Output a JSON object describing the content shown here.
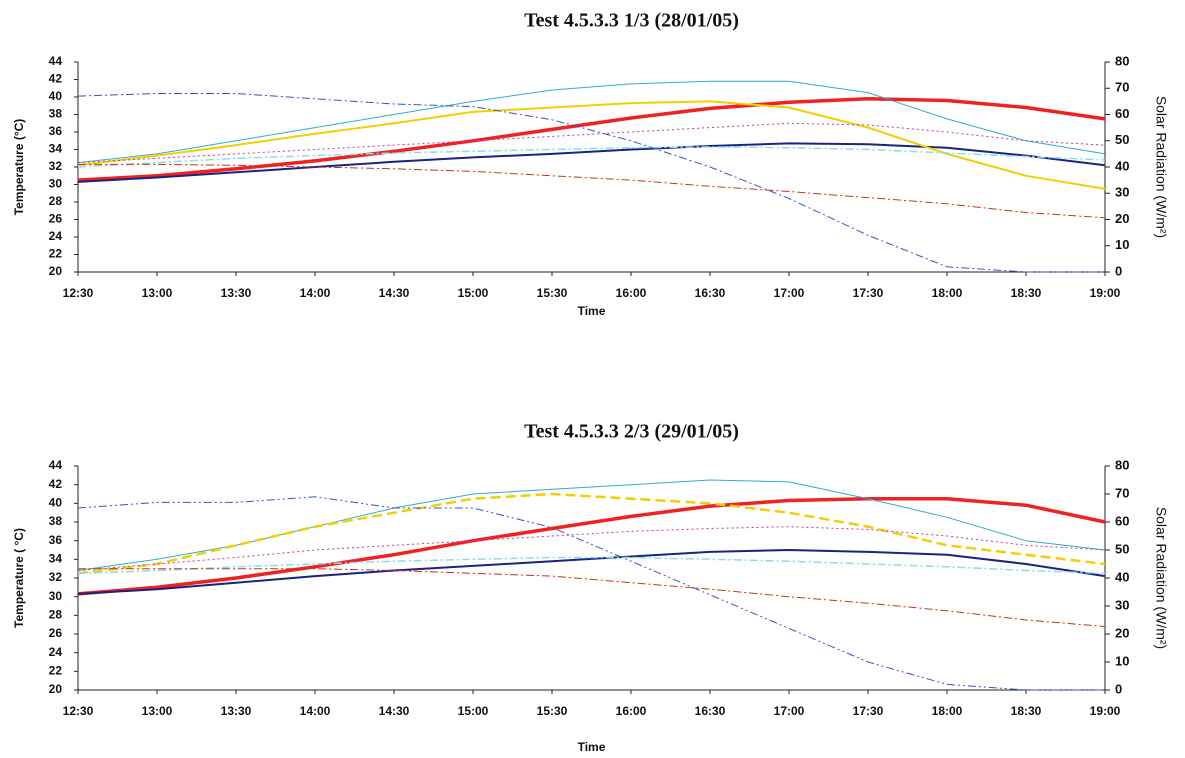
{
  "chart_data": [
    {
      "type": "line",
      "title": "Test 4.5.3.3   1/3 (28/01/05)",
      "x_label": "Time",
      "y_label": "Temperature (°C)",
      "y2_label": "Solar Radiation (W/m²)",
      "categories": [
        "12:30",
        "13:00",
        "13:30",
        "14:00",
        "14:30",
        "15:00",
        "15:30",
        "16:00",
        "16:30",
        "17:00",
        "17:30",
        "18:00",
        "18:30",
        "19:00"
      ],
      "ylim": [
        20,
        44
      ],
      "yticks": [
        20,
        22,
        24,
        26,
        28,
        30,
        32,
        34,
        36,
        38,
        40,
        42,
        44
      ],
      "y2lim": [
        0,
        80
      ],
      "y2ticks": [
        0,
        10,
        20,
        30,
        40,
        50,
        60,
        70,
        80
      ],
      "grid": false,
      "series": [
        {
          "color": "#ee2222",
          "width": 3.5,
          "dash": "",
          "values": [
            30.5,
            31,
            31.8,
            32.7,
            33.8,
            35,
            36.3,
            37.6,
            38.7,
            39.4,
            39.8,
            39.6,
            38.8,
            37.5
          ]
        },
        {
          "color": "#1a237e",
          "width": 2,
          "dash": "",
          "values": [
            30.3,
            30.8,
            31.4,
            32,
            32.6,
            33.1,
            33.5,
            34,
            34.4,
            34.7,
            34.6,
            34.2,
            33.3,
            32.2
          ]
        },
        {
          "color": "#33aacc",
          "width": 1,
          "dash": "",
          "values": [
            32.5,
            33.5,
            35,
            36.5,
            38,
            39.5,
            40.8,
            41.5,
            41.8,
            41.8,
            40.5,
            37.5,
            35,
            33.5
          ]
        },
        {
          "color": "#f0d000",
          "width": 2,
          "dash": "",
          "values": [
            32.2,
            33.3,
            34.5,
            35.8,
            37,
            38.3,
            38.8,
            39.3,
            39.5,
            38.8,
            36.5,
            33.5,
            31,
            29.5
          ]
        },
        {
          "color": "#cc33aa",
          "width": 1,
          "dash": "2 3",
          "values": [
            32.5,
            33,
            33.5,
            34,
            34.5,
            35,
            35.5,
            36,
            36.5,
            37,
            36.8,
            36,
            35,
            34.5
          ]
        },
        {
          "color": "#88ddee",
          "width": 1.5,
          "dash": "8 3 2 3",
          "values": [
            32,
            32.5,
            33,
            33.3,
            33.6,
            33.8,
            34,
            34.2,
            34.3,
            34.2,
            34,
            33.6,
            33.2,
            32.8
          ]
        },
        {
          "color": "#cc3311",
          "width": 1,
          "dash": "8 3 2 3",
          "values": [
            32.3,
            32.3,
            32.2,
            32,
            31.8,
            31.5,
            31,
            30.5,
            29.8,
            29.2,
            28.5,
            27.8,
            26.8,
            26.2
          ]
        },
        {
          "color": "#3355cc",
          "width": 1,
          "dash": "8 3 2 3",
          "axis": "y2",
          "values": [
            67,
            68,
            68,
            66,
            64,
            63,
            58,
            50,
            40,
            28,
            14,
            2,
            0,
            0
          ]
        }
      ]
    },
    {
      "type": "line",
      "title": "Test 4.5.3.3   2/3 (29/01/05)",
      "x_label": "Time",
      "y_label": "Temperature ( °C)",
      "y2_label": "Solar Radiation (W/m²)",
      "categories": [
        "12:30",
        "13:00",
        "13:30",
        "14:00",
        "14:30",
        "15:00",
        "15:30",
        "16:00",
        "16:30",
        "17:00",
        "17:30",
        "18:00",
        "18:30",
        "19:00"
      ],
      "ylim": [
        20,
        44
      ],
      "yticks": [
        20,
        22,
        24,
        26,
        28,
        30,
        32,
        34,
        36,
        38,
        40,
        42,
        44
      ],
      "y2lim": [
        0,
        80
      ],
      "y2ticks": [
        0,
        10,
        20,
        30,
        40,
        50,
        60,
        70,
        80
      ],
      "grid": false,
      "series": [
        {
          "color": "#ee2222",
          "width": 3.5,
          "dash": "",
          "values": [
            30.3,
            31,
            32,
            33.2,
            34.5,
            36,
            37.3,
            38.6,
            39.7,
            40.3,
            40.5,
            40.5,
            39.8,
            38
          ]
        },
        {
          "color": "#1a237e",
          "width": 2,
          "dash": "",
          "values": [
            30.3,
            30.8,
            31.5,
            32.2,
            32.8,
            33.3,
            33.8,
            34.3,
            34.8,
            35,
            34.8,
            34.5,
            33.5,
            32.2
          ]
        },
        {
          "color": "#33aacc",
          "width": 1,
          "dash": "",
          "values": [
            32.8,
            34,
            35.5,
            37.5,
            39.5,
            41,
            41.5,
            42,
            42.5,
            42.3,
            40.5,
            38.5,
            36,
            35
          ]
        },
        {
          "color": "#f0d000",
          "width": 2.5,
          "dash": "10 5",
          "values": [
            32.5,
            33.5,
            35.5,
            37.5,
            39,
            40.5,
            41,
            40.5,
            40,
            39,
            37.5,
            35.5,
            34.5,
            33.5
          ]
        },
        {
          "color": "#cc33aa",
          "width": 1,
          "dash": "2 3",
          "values": [
            32.8,
            33.5,
            34.2,
            35,
            35.5,
            36,
            36.5,
            37,
            37.3,
            37.5,
            37.2,
            36.5,
            35.5,
            35
          ]
        },
        {
          "color": "#88ddee",
          "width": 1.5,
          "dash": "8 3 2 3",
          "values": [
            32.5,
            32.8,
            33.2,
            33.5,
            33.8,
            34,
            34.2,
            34.2,
            34,
            33.8,
            33.5,
            33.2,
            32.8,
            32.5
          ]
        },
        {
          "color": "#cc3311",
          "width": 1,
          "dash": "8 3 2 3",
          "values": [
            33,
            33,
            33,
            33,
            32.8,
            32.5,
            32.2,
            31.5,
            30.8,
            30,
            29.3,
            28.5,
            27.5,
            26.8
          ]
        },
        {
          "color": "#3355cc",
          "width": 1,
          "dash": "8 3 2 3 2 3",
          "axis": "y2",
          "values": [
            65,
            67,
            67,
            69,
            65,
            65,
            58,
            46,
            34,
            22,
            10,
            2,
            0,
            0
          ]
        }
      ]
    }
  ]
}
